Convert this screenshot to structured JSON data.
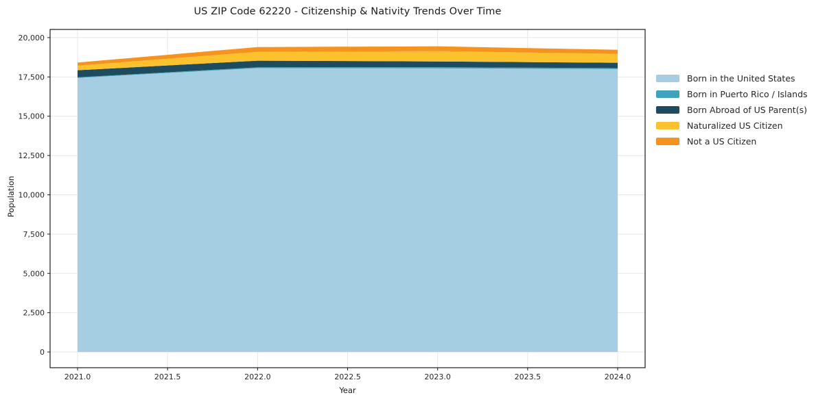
{
  "chart_data": {
    "type": "area",
    "stacked": true,
    "title": "US ZIP Code 62220 - Citizenship & Nativity Trends Over Time",
    "xlabel": "Year",
    "ylabel": "Population",
    "x": [
      2021,
      2022,
      2023,
      2024
    ],
    "series": [
      {
        "name": "Born in the United States",
        "color": "#A6CEE3",
        "values": [
          17435,
          18060,
          18040,
          18000
        ]
      },
      {
        "name": "Born in Puerto Rico / Islands",
        "color": "#3FA3BE",
        "values": [
          40,
          55,
          80,
          60
        ]
      },
      {
        "name": "Born Abroad of US Parent(s)",
        "color": "#1F4B5E",
        "values": [
          450,
          420,
          365,
          340
        ]
      },
      {
        "name": "Naturalized US Citizen",
        "color": "#FCC22D",
        "values": [
          290,
          560,
          655,
          565
        ]
      },
      {
        "name": "Not a US Citizen",
        "color": "#F6921E",
        "values": [
          200,
          305,
          305,
          260
        ]
      }
    ],
    "x_ticks": {
      "values": [
        2021.0,
        2021.5,
        2022.0,
        2022.5,
        2023.0,
        2023.5,
        2024.0
      ],
      "labels": [
        "2021.0",
        "2021.5",
        "2022.0",
        "2022.5",
        "2023.0",
        "2023.5",
        "2024.0"
      ]
    },
    "y_ticks": {
      "values": [
        0,
        2500,
        5000,
        7500,
        10000,
        12500,
        15000,
        17500,
        20000
      ],
      "labels": [
        "0",
        "2,500",
        "5,000",
        "7,500",
        "10,000",
        "12,500",
        "15,000",
        "17,500",
        "20,000"
      ]
    },
    "xlim": [
      2020.8475,
      2024.1525
    ],
    "ylim": [
      -1000,
      20520
    ],
    "grid": true,
    "legend_position": "right",
    "colors": {
      "grid": "#e7e7e7",
      "spine": "#1a1a1a",
      "tick": "#1a1a1a",
      "text": "#262626"
    }
  }
}
